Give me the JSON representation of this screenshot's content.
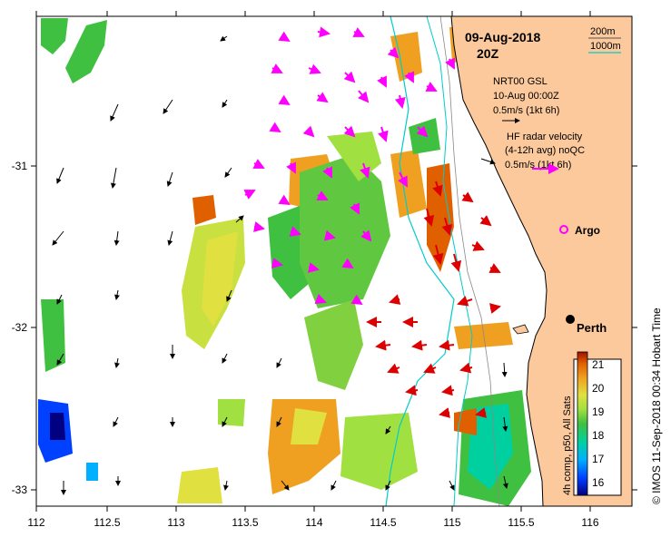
{
  "title": {
    "date": "09-Aug-2018",
    "time": "20Z"
  },
  "depth_legend": {
    "shallow": "200m",
    "deep": "1000m",
    "shallow_color": "#555555",
    "deep_color": "#00cccc"
  },
  "vector_legend": {
    "model": "NRT00 GSL",
    "model_time": "10-Aug 00:00Z",
    "model_scale": "0.5m/s (1kt 6h)",
    "radar_line1": "HF radar velocity",
    "radar_line2": "(4-12h avg) noQC",
    "radar_scale": "0.5m/s (1kt 6h)"
  },
  "markers": {
    "argo": "Argo",
    "city": "Perth"
  },
  "axes": {
    "x_ticks": [
      "112",
      "112.5",
      "113",
      "113.5",
      "114",
      "114.5",
      "115",
      "115.5",
      "116"
    ],
    "y_ticks": [
      "-31",
      "-32",
      "-33"
    ]
  },
  "colorbar": {
    "label": "4h comp, p50, All Sats",
    "ticks": [
      "21",
      "20",
      "19",
      "18",
      "17",
      "16"
    ],
    "range": [
      15.5,
      21.5
    ],
    "colors": [
      "#000080",
      "#0040ff",
      "#00b0ff",
      "#00d0a0",
      "#40c040",
      "#a0e040",
      "#e0e040",
      "#f0a020",
      "#e06000",
      "#a01000"
    ]
  },
  "credit": "© IMOS 11-Sep-2018 00:34 Hobart Time",
  "colors": {
    "land": "#fcc99c",
    "coast": "#000000",
    "model_arrows": "#000000",
    "radar_arrows": "#ff00ff",
    "strong_arrows": "#dd0000",
    "argo": "#ff00ff"
  }
}
